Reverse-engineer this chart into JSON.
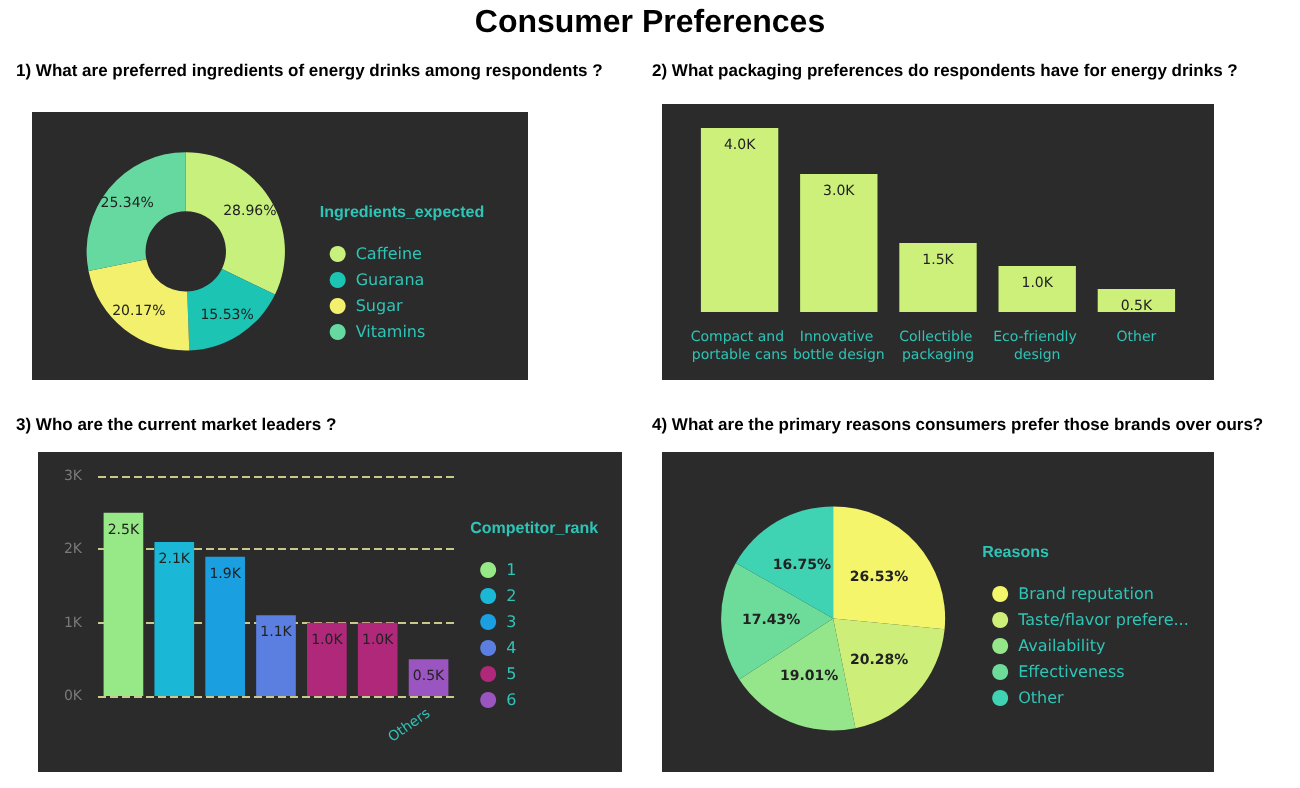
{
  "chart_data": [
    {
      "type": "other",
      "title": "Consumer Preferences"
    },
    {
      "type": "donut",
      "title": "1) What are preferred ingredients of energy drinks among respondents ?",
      "legend_title": "Ingredients_expected",
      "legend": "right",
      "categories": [
        "Caffeine",
        "Guarana",
        "Sugar",
        "Vitamins"
      ],
      "values": [
        28.96,
        15.53,
        20.17,
        25.34
      ],
      "value_labels": [
        "28.96%",
        "15.53%",
        "20.17%",
        "25.34%"
      ],
      "colors": [
        "#c8f07c",
        "#1cc4b4",
        "#f2f06c",
        "#66d9a0"
      ]
    },
    {
      "type": "bar",
      "title": "2) What packaging preferences do respondents have for energy drinks ?",
      "tick_labels": "x",
      "categories": [
        "Compact and portable cans",
        "Innovative bottle design",
        "Collectible packaging",
        "Eco-friendly design",
        "Other"
      ],
      "series": [
        {
          "color": "#ccf07a",
          "values": [
            4000,
            3000,
            1500,
            1000,
            500
          ],
          "value_labels": [
            "4.0K",
            "3.0K",
            "1.5K",
            "1.0K",
            "0.5K"
          ]
        }
      ]
    },
    {
      "type": "bar",
      "title": "3) Who are the current market leaders ?",
      "legend_title": "Competitor_rank",
      "legend": "right",
      "stacked": true,
      "grid": "y",
      "categories": [
        null,
        null,
        null,
        null,
        null,
        null,
        "Others"
      ],
      "ylim": [
        0,
        3000
      ],
      "yticks": [
        {
          "value": 0,
          "label": "0K"
        },
        {
          "value": 1000,
          "label": "1K"
        },
        {
          "value": 2000,
          "label": "2K"
        },
        {
          "value": 3000,
          "label": "3K"
        }
      ],
      "series": [
        {
          "name": "1",
          "color": "#97e886",
          "values": [
            2500,
            null,
            null,
            null,
            null,
            null,
            null
          ],
          "value_labels": [
            "2.5K",
            null,
            null,
            null,
            null,
            null,
            null
          ]
        },
        {
          "name": "2",
          "color": "#1ab8d6",
          "values": [
            null,
            2100,
            null,
            null,
            null,
            null,
            null
          ],
          "value_labels": [
            null,
            "2.1K",
            null,
            null,
            null,
            null,
            null
          ]
        },
        {
          "name": "3",
          "color": "#1a9fe0",
          "values": [
            null,
            null,
            1900,
            null,
            null,
            null,
            null
          ],
          "value_labels": [
            null,
            null,
            "1.9K",
            null,
            null,
            null,
            null
          ]
        },
        {
          "name": "4",
          "color": "#5b7fe0",
          "values": [
            null,
            null,
            null,
            1100,
            null,
            null,
            null
          ],
          "value_labels": [
            null,
            null,
            null,
            "1.1K",
            null,
            null,
            null
          ]
        },
        {
          "name": "5",
          "color": "#b0287a",
          "values": [
            null,
            null,
            null,
            null,
            1000,
            1000,
            null
          ],
          "value_labels": [
            null,
            null,
            null,
            null,
            "1.0K",
            "1.0K",
            null
          ]
        },
        {
          "name": "6",
          "color": "#9a55c0",
          "values": [
            null,
            null,
            null,
            null,
            null,
            null,
            500
          ],
          "value_labels": [
            null,
            null,
            null,
            null,
            null,
            null,
            "0.5K"
          ]
        }
      ]
    },
    {
      "type": "pie",
      "title": "4) What are the primary reasons consumers prefer those brands over ours?",
      "legend_title": "Reasons",
      "legend": "right",
      "categories": [
        "Brand reputation",
        "Taste/flavor prefere...",
        "Availability",
        "Effectiveness",
        "Other"
      ],
      "values": [
        26.53,
        20.28,
        19.01,
        17.43,
        16.75
      ],
      "value_labels": [
        "26.53%",
        "20.28%",
        "19.01%",
        "17.43%",
        "16.75%"
      ],
      "colors": [
        "#f5f56b",
        "#cdef7a",
        "#95e58a",
        "#6ddc9a",
        "#3fd3b4"
      ]
    }
  ]
}
